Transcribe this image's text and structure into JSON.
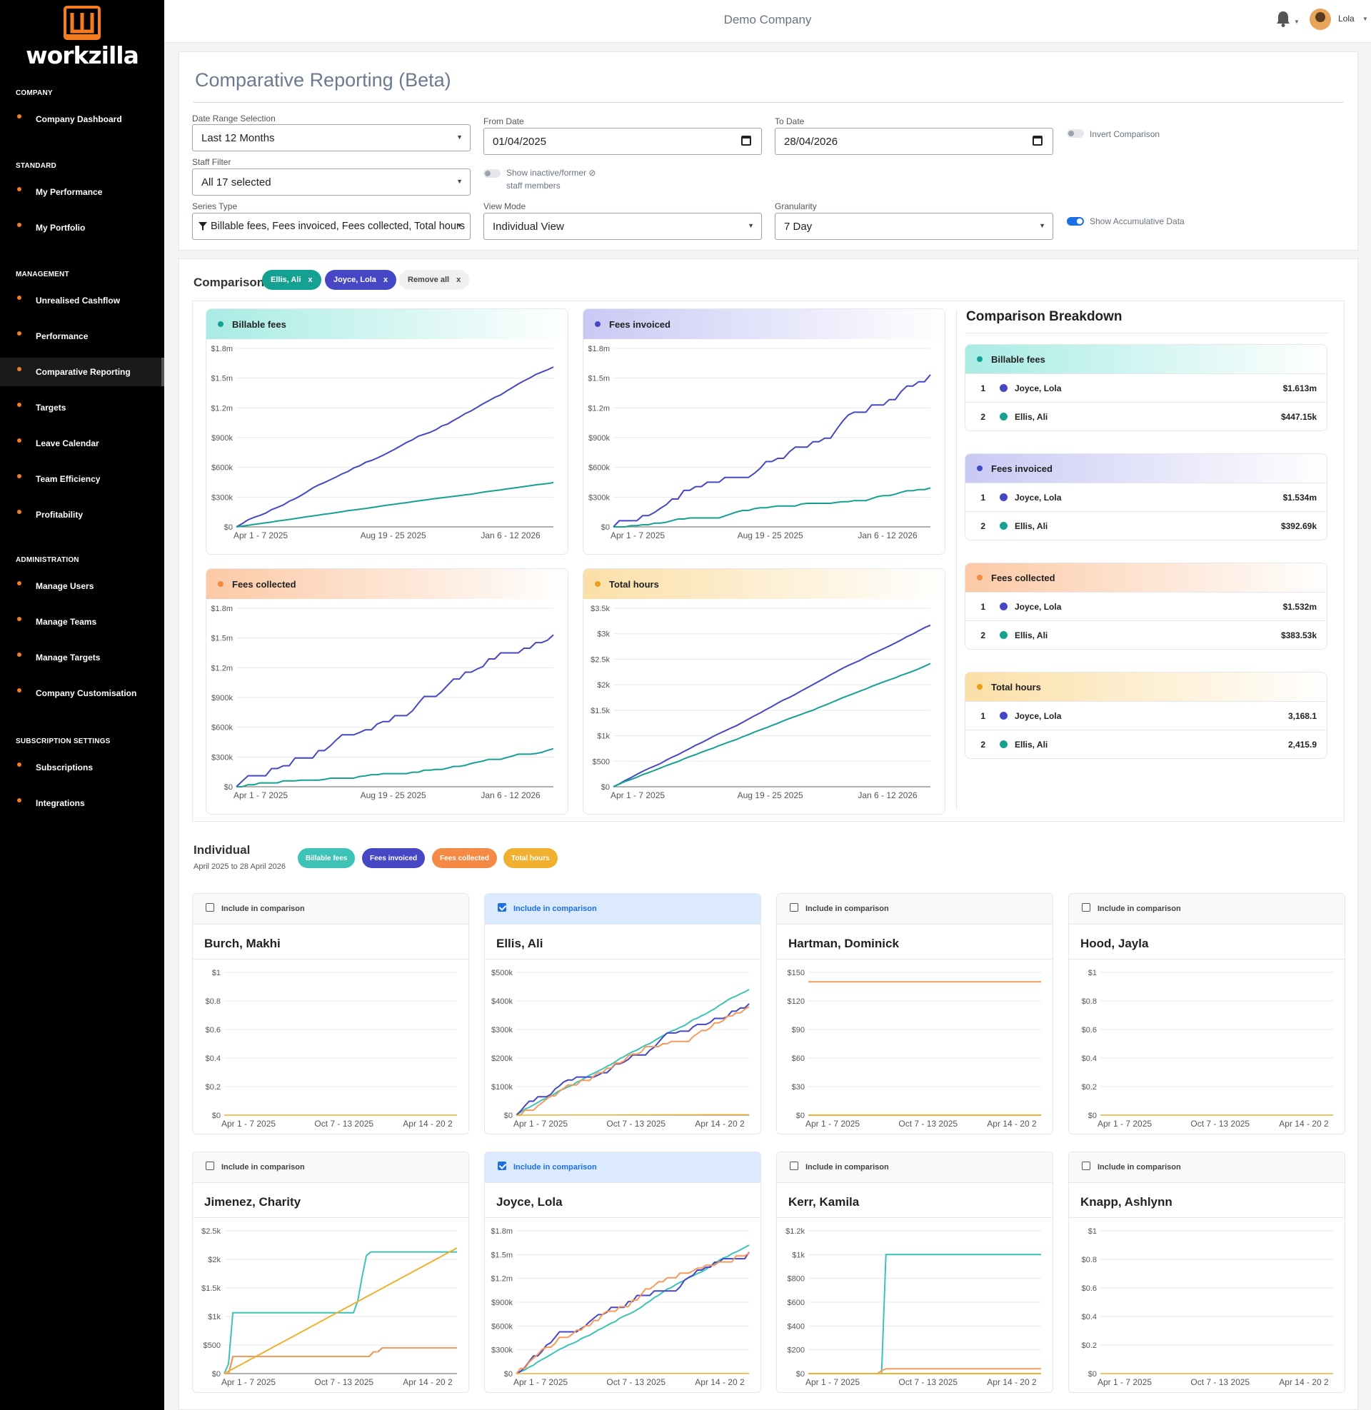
{
  "sidebar": {
    "logo_text": "workzilla",
    "sections": [
      {
        "title": "COMPANY",
        "items": [
          "Company Dashboard"
        ]
      },
      {
        "title": "STANDARD",
        "items": [
          "My Performance",
          "My Portfolio"
        ]
      },
      {
        "title": "MANAGEMENT",
        "items": [
          "Unrealised Cashflow",
          "Performance",
          "Comparative Reporting",
          "Targets",
          "Leave Calendar",
          "Team Efficiency",
          "Profitability"
        ]
      },
      {
        "title": "ADMINISTRATION",
        "items": [
          "Manage Users",
          "Manage Teams",
          "Manage Targets",
          "Company Customisation"
        ]
      },
      {
        "title": "SUBSCRIPTION SETTINGS",
        "items": [
          "Subscriptions",
          "Integrations"
        ]
      }
    ],
    "active_item": "Comparative Reporting"
  },
  "topbar": {
    "company": "Demo Company",
    "user": "Lola"
  },
  "filters": {
    "page_title": "Comparative Reporting (Beta)",
    "date_range_label": "Date Range Selection",
    "date_range_value": "Last 12 Months",
    "from_label": "From Date",
    "from_value": "01/04/2025",
    "to_label": "To Date",
    "to_value": "28/04/2026",
    "invert_label": "Invert Comparison",
    "staff_label": "Staff Filter",
    "staff_value": "All 17 selected",
    "inactive_label_1": "Show inactive/former ⊘",
    "inactive_label_2": "staff members",
    "series_label": "Series Type",
    "series_value": "Billable fees, Fees invoiced, Fees collected, Total hours",
    "view_label": "View Mode",
    "view_value": "Individual View",
    "gran_label": "Granularity",
    "gran_value": "7 Day",
    "accum_label": "Show Accumulative Data",
    "accum_on": true,
    "invert_on": false,
    "inactive_on": false
  },
  "comparison": {
    "title": "Comparison",
    "pills": [
      {
        "label": "Ellis, Ali",
        "x": "x",
        "color": "#14a192"
      },
      {
        "label": "Joyce, Lola",
        "x": "x",
        "color": "#4547c4"
      }
    ],
    "remove_all": "Remove all",
    "remove_x": "x"
  },
  "colors": {
    "joyce": "#4547c4",
    "ellis": "#14a192",
    "teal": "#3cc3b5",
    "orange": "#f59a5b",
    "amber": "#f0b030"
  },
  "chart_data": [
    {
      "type": "line",
      "title": "Billable fees",
      "categories": [
        "Apr 1 - 7 2025",
        "Aug 19 - 25 2025",
        "Jan 6 - 12 2026"
      ],
      "y_ticks": [
        "$0",
        "$300k",
        "$600k",
        "$900k",
        "$1.2m",
        "$1.5m",
        "$1.8m"
      ],
      "ylim": [
        0,
        1800000
      ],
      "accent": "#30b9ab",
      "series": [
        {
          "name": "Joyce, Lola",
          "final": 1613000
        },
        {
          "name": "Ellis, Ali",
          "final": 447150
        }
      ]
    },
    {
      "type": "line",
      "title": "Fees invoiced",
      "categories": [
        "Apr 1 - 7 2025",
        "Aug 19 - 25 2025",
        "Jan 6 - 12 2026"
      ],
      "y_ticks": [
        "$0",
        "$300k",
        "$600k",
        "$900k",
        "$1.2m",
        "$1.5m",
        "$1.8m"
      ],
      "ylim": [
        0,
        1800000
      ],
      "accent": "#4547c4",
      "series": [
        {
          "name": "Joyce, Lola",
          "final": 1534000
        },
        {
          "name": "Ellis, Ali",
          "final": 392690
        }
      ]
    },
    {
      "type": "line",
      "title": "Fees collected",
      "categories": [
        "Apr 1 - 7 2025",
        "Aug 19 - 25 2025",
        "Jan 6 - 12 2026"
      ],
      "y_ticks": [
        "$0",
        "$300k",
        "$600k",
        "$900k",
        "$1.2m",
        "$1.5m",
        "$1.8m"
      ],
      "ylim": [
        0,
        1800000
      ],
      "accent": "#f58a45",
      "series": [
        {
          "name": "Joyce, Lola",
          "final": 1532000
        },
        {
          "name": "Ellis, Ali",
          "final": 383530
        }
      ]
    },
    {
      "type": "line",
      "title": "Total hours",
      "categories": [
        "Apr 1 - 7 2025",
        "Aug 19 - 25 2025",
        "Jan 6 - 12 2026"
      ],
      "y_ticks": [
        "$0",
        "$500",
        "$1k",
        "$1.5k",
        "$2k",
        "$2.5k",
        "$3k",
        "$3.5k"
      ],
      "ylim": [
        0,
        3500
      ],
      "accent": "#e5a11a",
      "series": [
        {
          "name": "Joyce, Lola",
          "final": 3168.1
        },
        {
          "name": "Ellis, Ali",
          "final": 2415.9
        }
      ]
    }
  ],
  "breakdown": {
    "title": "Comparison Breakdown",
    "cards": [
      {
        "title": "Billable fees",
        "rows": [
          {
            "rank": "1",
            "name": "Joyce, Lola",
            "value": "$1.613m"
          },
          {
            "rank": "2",
            "name": "Ellis, Ali",
            "value": "$447.15k"
          }
        ]
      },
      {
        "title": "Fees invoiced",
        "rows": [
          {
            "rank": "1",
            "name": "Joyce, Lola",
            "value": "$1.534m"
          },
          {
            "rank": "2",
            "name": "Ellis, Ali",
            "value": "$392.69k"
          }
        ]
      },
      {
        "title": "Fees collected",
        "rows": [
          {
            "rank": "1",
            "name": "Joyce, Lola",
            "value": "$1.532m"
          },
          {
            "rank": "2",
            "name": "Ellis, Ali",
            "value": "$383.53k"
          }
        ]
      },
      {
        "title": "Total hours",
        "rows": [
          {
            "rank": "1",
            "name": "Joyce, Lola",
            "value": "3,168.1"
          },
          {
            "rank": "2",
            "name": "Ellis, Ali",
            "value": "2,415.9"
          }
        ]
      }
    ]
  },
  "individual": {
    "title": "Individual",
    "subtitle": "April 2025 to 28 April 2026",
    "legend": [
      "Billable fees",
      "Fees invoiced",
      "Fees collected",
      "Total hours"
    ],
    "include_label": "Include in comparison",
    "x_ticks": [
      "Apr 1 - 7 2025",
      "Oct 7 - 13 2025",
      "Apr 14 - 20 2"
    ],
    "people": [
      {
        "name": "Burch, Makhi",
        "checked": false,
        "y_ticks": [
          "$0",
          "$0.2",
          "$0.4",
          "$0.6",
          "$0.8",
          "$1"
        ],
        "ymax": 1
      },
      {
        "name": "Ellis, Ali",
        "checked": true,
        "y_ticks": [
          "$0",
          "$100k",
          "$200k",
          "$300k",
          "$400k",
          "$500k"
        ],
        "ymax": 500000
      },
      {
        "name": "Hartman, Dominick",
        "checked": false,
        "y_ticks": [
          "$0",
          "$30",
          "$60",
          "$90",
          "$120",
          "$150"
        ],
        "ymax": 150
      },
      {
        "name": "Hood, Jayla",
        "checked": false,
        "y_ticks": [
          "$0",
          "$0.2",
          "$0.4",
          "$0.6",
          "$0.8",
          "$1"
        ],
        "ymax": 1
      },
      {
        "name": "Jimenez, Charity",
        "checked": false,
        "y_ticks": [
          "$0",
          "$500",
          "$1k",
          "$1.5k",
          "$2k",
          "$2.5k"
        ],
        "ymax": 2500
      },
      {
        "name": "Joyce, Lola",
        "checked": true,
        "y_ticks": [
          "$0",
          "$300k",
          "$600k",
          "$900k",
          "$1.2m",
          "$1.5m",
          "$1.8m"
        ],
        "ymax": 1800000
      },
      {
        "name": "Kerr, Kamila",
        "checked": false,
        "y_ticks": [
          "$0",
          "$200",
          "$400",
          "$600",
          "$800",
          "$1k",
          "$1.2k"
        ],
        "ymax": 1200
      },
      {
        "name": "Knapp, Ashlynn",
        "checked": false,
        "y_ticks": [
          "$0",
          "$0.2",
          "$0.4",
          "$0.6",
          "$0.8",
          "$1"
        ],
        "ymax": 1
      }
    ]
  }
}
